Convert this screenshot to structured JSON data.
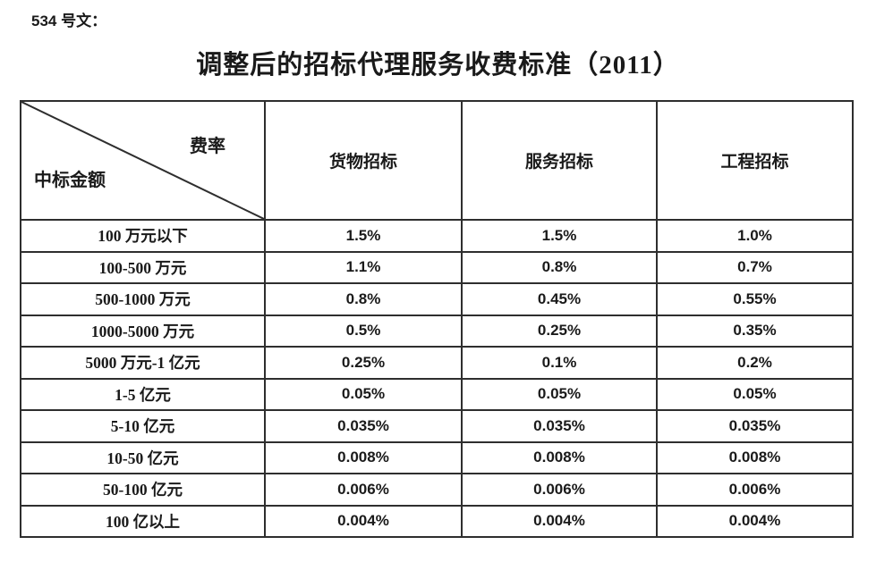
{
  "page": {
    "doc_number": "534 号文：",
    "title": "调整后的招标代理服务收费标准（2011）"
  },
  "table": {
    "corner": {
      "top_right": "费率",
      "bottom_left": "中标金额"
    },
    "columns": [
      "货物招标",
      "服务招标",
      "工程招标"
    ],
    "rows": [
      {
        "label": "100 万元以下",
        "values": [
          "1.5%",
          "1.5%",
          "1.0%"
        ]
      },
      {
        "label": "100-500 万元",
        "values": [
          "1.1%",
          "0.8%",
          "0.7%"
        ]
      },
      {
        "label": "500-1000 万元",
        "values": [
          "0.8%",
          "0.45%",
          "0.55%"
        ]
      },
      {
        "label": "1000-5000 万元",
        "values": [
          "0.5%",
          "0.25%",
          "0.35%"
        ]
      },
      {
        "label": "5000 万元-1 亿元",
        "values": [
          "0.25%",
          "0.1%",
          "0.2%"
        ]
      },
      {
        "label": "1-5 亿元",
        "values": [
          "0.05%",
          "0.05%",
          "0.05%"
        ]
      },
      {
        "label": "5-10 亿元",
        "values": [
          "0.035%",
          "0.035%",
          "0.035%"
        ]
      },
      {
        "label": "10-50 亿元",
        "values": [
          "0.008%",
          "0.008%",
          "0.008%"
        ]
      },
      {
        "label": "50-100 亿元",
        "values": [
          "0.006%",
          "0.006%",
          "0.006%"
        ]
      },
      {
        "label": "100 亿以上",
        "values": [
          "0.004%",
          "0.004%",
          "0.004%"
        ]
      }
    ]
  },
  "colors": {
    "text": "#1a1a1a",
    "border": "#2e2e2e",
    "background": "#ffffff"
  }
}
